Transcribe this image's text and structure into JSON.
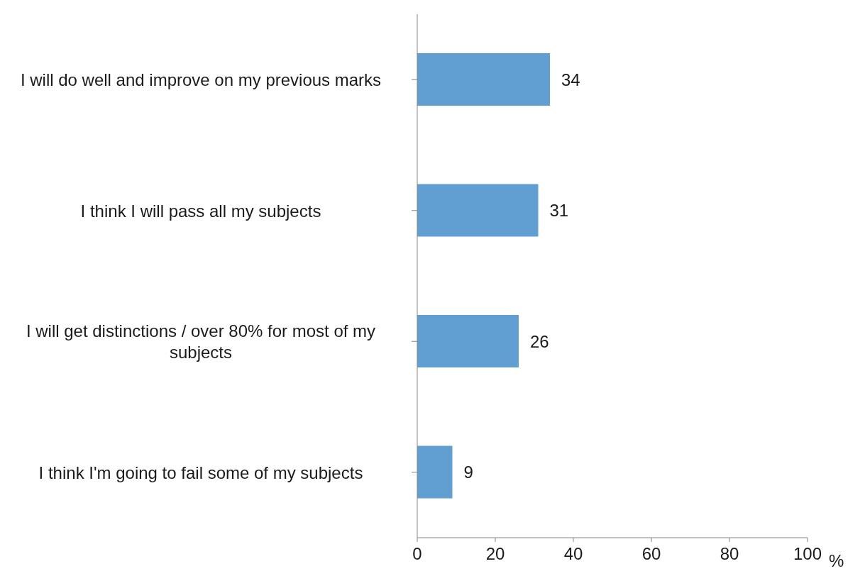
{
  "chart_data": {
    "type": "bar",
    "orientation": "horizontal",
    "xlabel": "%",
    "categories": [
      "I will do well and improve on my previous marks",
      "I think I will pass all my subjects",
      "I will get distinctions / over 80% for most of my subjects",
      "I think I'm going to fail some of my subjects"
    ],
    "values": [
      34,
      31,
      26,
      9
    ],
    "color": "#619fd3",
    "xlim": [
      0,
      100
    ],
    "xticks": [
      0,
      20,
      40,
      60,
      80,
      100
    ],
    "data_labels": true,
    "grid": false,
    "legend": false
  }
}
